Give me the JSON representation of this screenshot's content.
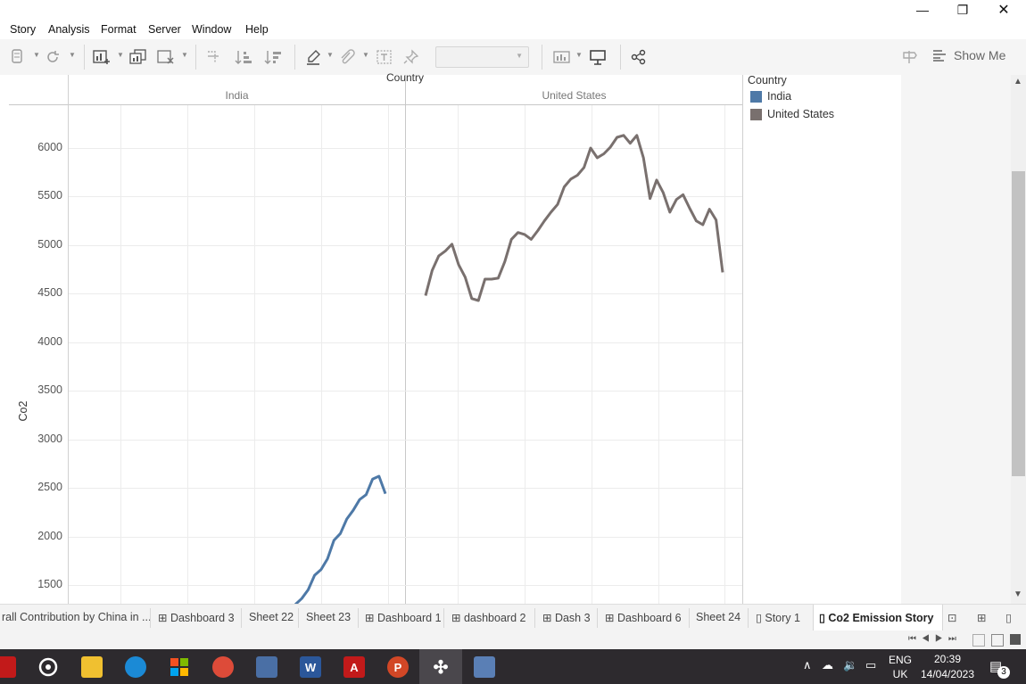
{
  "menu": [
    "Story",
    "Analysis",
    "Format",
    "Server",
    "Window",
    "Help"
  ],
  "window_controls": {
    "minimize": "—",
    "restore": "❐",
    "close": "✕"
  },
  "toolbar": {
    "show_me_label": "Show Me",
    "dropdown_value": "",
    "icons": [
      "data-source-icon",
      "refresh-icon",
      "new-worksheet-icon",
      "duplicate-sheet-icon",
      "clear-sheet-icon",
      "swap-icon",
      "sort-asc-icon",
      "sort-desc-icon",
      "highlight-icon",
      "group-icon",
      "label-icon",
      "pin-icon",
      "fit-icon",
      "presentation-icon",
      "share-icon"
    ]
  },
  "viz": {
    "column_header_title": "Country",
    "y_axis_label": "Co2",
    "panes": [
      "India",
      "United States"
    ]
  },
  "legend": {
    "title": "Country",
    "items": [
      {
        "label": "India",
        "color": "#4e79a7"
      },
      {
        "label": "United States",
        "color": "#79706e"
      }
    ]
  },
  "chart_data": {
    "type": "line",
    "ylabel": "Co2",
    "ylim": [
      1300,
      6450
    ],
    "yticks": [
      1500,
      2000,
      2500,
      3000,
      3500,
      4000,
      4500,
      5000,
      5500,
      6000
    ],
    "grid": true,
    "column_header": "Country",
    "series": [
      {
        "name": "India",
        "color": "#4e79a7",
        "values": [
          1300,
          1360,
          1450,
          1600,
          1660,
          1770,
          1960,
          2030,
          2180,
          2270,
          2380,
          2430,
          2590,
          2620,
          2440
        ]
      },
      {
        "name": "United States",
        "color": "#79706e",
        "values": [
          4480,
          4740,
          4890,
          4940,
          5010,
          4800,
          4670,
          4450,
          4430,
          4650,
          4650,
          4660,
          4830,
          5060,
          5130,
          5110,
          5060,
          5150,
          5250,
          5340,
          5420,
          5600,
          5680,
          5720,
          5800,
          6000,
          5900,
          5940,
          6010,
          6110,
          6130,
          6050,
          6130,
          5900,
          5480,
          5670,
          5540,
          5340,
          5470,
          5520,
          5380,
          5250,
          5210,
          5370,
          5260,
          4720
        ]
      }
    ]
  },
  "tabs": [
    {
      "label": "rall Contribution by China in ...",
      "icon": ""
    },
    {
      "label": "Dashboard 3",
      "icon": "dashboard-icon"
    },
    {
      "label": "Sheet 22",
      "icon": ""
    },
    {
      "label": "Sheet 23",
      "icon": ""
    },
    {
      "label": "Dashboard 1",
      "icon": "dashboard-icon"
    },
    {
      "label": "dashboard 2",
      "icon": "dashboard-icon"
    },
    {
      "label": "Dash 3",
      "icon": "dashboard-icon"
    },
    {
      "label": "Dashboard 6",
      "icon": "dashboard-icon"
    },
    {
      "label": "Sheet 24",
      "icon": ""
    },
    {
      "label": "Story 1",
      "icon": "story-icon"
    },
    {
      "label": "Co2 Emission Story",
      "icon": "story-icon"
    }
  ],
  "taskbar": {
    "language": "ENG",
    "region": "UK",
    "time": "20:39",
    "date": "14/04/2023",
    "notification_count": "3"
  }
}
